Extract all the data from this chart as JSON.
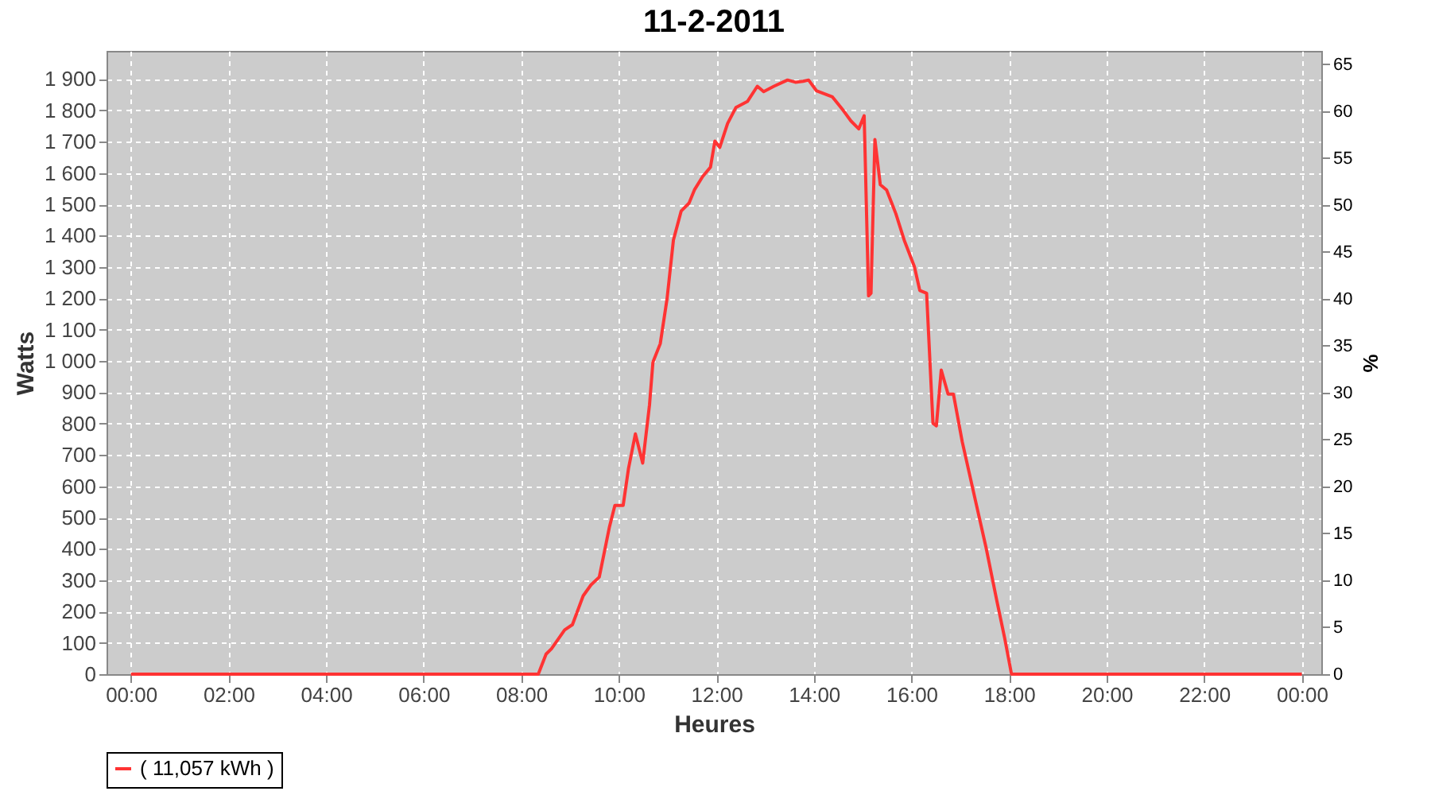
{
  "chart_data": {
    "type": "line",
    "title": "11-2-2011",
    "xlabel": "Heures",
    "ylabel": "Watts",
    "y2label": "%",
    "x": [
      0,
      8.35,
      8.51,
      8.62,
      8.89,
      9.05,
      9.27,
      9.43,
      9.6,
      9.81,
      9.92,
      10.09,
      10.2,
      10.34,
      10.49,
      10.63,
      10.7,
      10.85,
      10.99,
      11.12,
      11.28,
      11.44,
      11.55,
      11.72,
      11.88,
      11.97,
      12.07,
      12.23,
      12.4,
      12.64,
      12.84,
      12.97,
      13.18,
      13.46,
      13.62,
      13.78,
      13.89,
      14.05,
      14.38,
      14.6,
      14.76,
      14.92,
      15.03,
      15.12,
      15.17,
      15.25,
      15.36,
      15.49,
      15.68,
      15.85,
      16.06,
      16.17,
      16.31,
      16.44,
      16.51,
      16.61,
      16.75,
      16.86,
      17.04,
      17.31,
      17.53,
      17.75,
      17.91,
      18.05,
      24
    ],
    "series": [
      {
        "name": "( 11,057 kWh )",
        "color": "#ff3333",
        "values": [
          0,
          0,
          64,
          81,
          141,
          158,
          250,
          285,
          310,
          471,
          539,
          539,
          657,
          767,
          674,
          860,
          996,
          1055,
          1199,
          1386,
          1479,
          1504,
          1546,
          1589,
          1619,
          1702,
          1682,
          1758,
          1809,
          1829,
          1877,
          1860,
          1877,
          1897,
          1890,
          1893,
          1897,
          1863,
          1843,
          1800,
          1766,
          1741,
          1783,
          1208,
          1216,
          1707,
          1563,
          1546,
          1470,
          1386,
          1301,
          1225,
          1216,
          801,
          793,
          971,
          894,
          894,
          742,
          555,
          403,
          234,
          115,
          0,
          0
        ]
      }
    ],
    "xlim": [
      -0.5,
      24.4
    ],
    "xticks": [
      {
        "value": 0,
        "label": "00:00"
      },
      {
        "value": 2,
        "label": "02:00"
      },
      {
        "value": 4,
        "label": "04:00"
      },
      {
        "value": 6,
        "label": "06:00"
      },
      {
        "value": 8,
        "label": "08:00"
      },
      {
        "value": 10,
        "label": "10:00"
      },
      {
        "value": 12,
        "label": "12:00"
      },
      {
        "value": 14,
        "label": "14:00"
      },
      {
        "value": 16,
        "label": "16:00"
      },
      {
        "value": 18,
        "label": "18:00"
      },
      {
        "value": 20,
        "label": "20:00"
      },
      {
        "value": 22,
        "label": "22:00"
      },
      {
        "value": 24,
        "label": "00:00"
      }
    ],
    "ylim": [
      0,
      1990
    ],
    "yticks": [
      0,
      100,
      200,
      300,
      400,
      500,
      600,
      700,
      800,
      900,
      {
        "value": 1000,
        "label": "1 000"
      },
      {
        "value": 1100,
        "label": "1 100"
      },
      {
        "value": 1200,
        "label": "1 200"
      },
      {
        "value": 1300,
        "label": "1 300"
      },
      {
        "value": 1400,
        "label": "1 400"
      },
      {
        "value": 1500,
        "label": "1 500"
      },
      {
        "value": 1600,
        "label": "1 600"
      },
      {
        "value": 1700,
        "label": "1 700"
      },
      {
        "value": 1800,
        "label": "1 800"
      },
      {
        "value": 1900,
        "label": "1 900"
      }
    ],
    "y2lim": [
      0,
      66.4
    ],
    "y2ticks": [
      0,
      5,
      10,
      15,
      20,
      25,
      30,
      35,
      40,
      45,
      50,
      55,
      60,
      65
    ],
    "grid": true,
    "legend": "bottom",
    "line_style": "solid",
    "marker": "none"
  }
}
